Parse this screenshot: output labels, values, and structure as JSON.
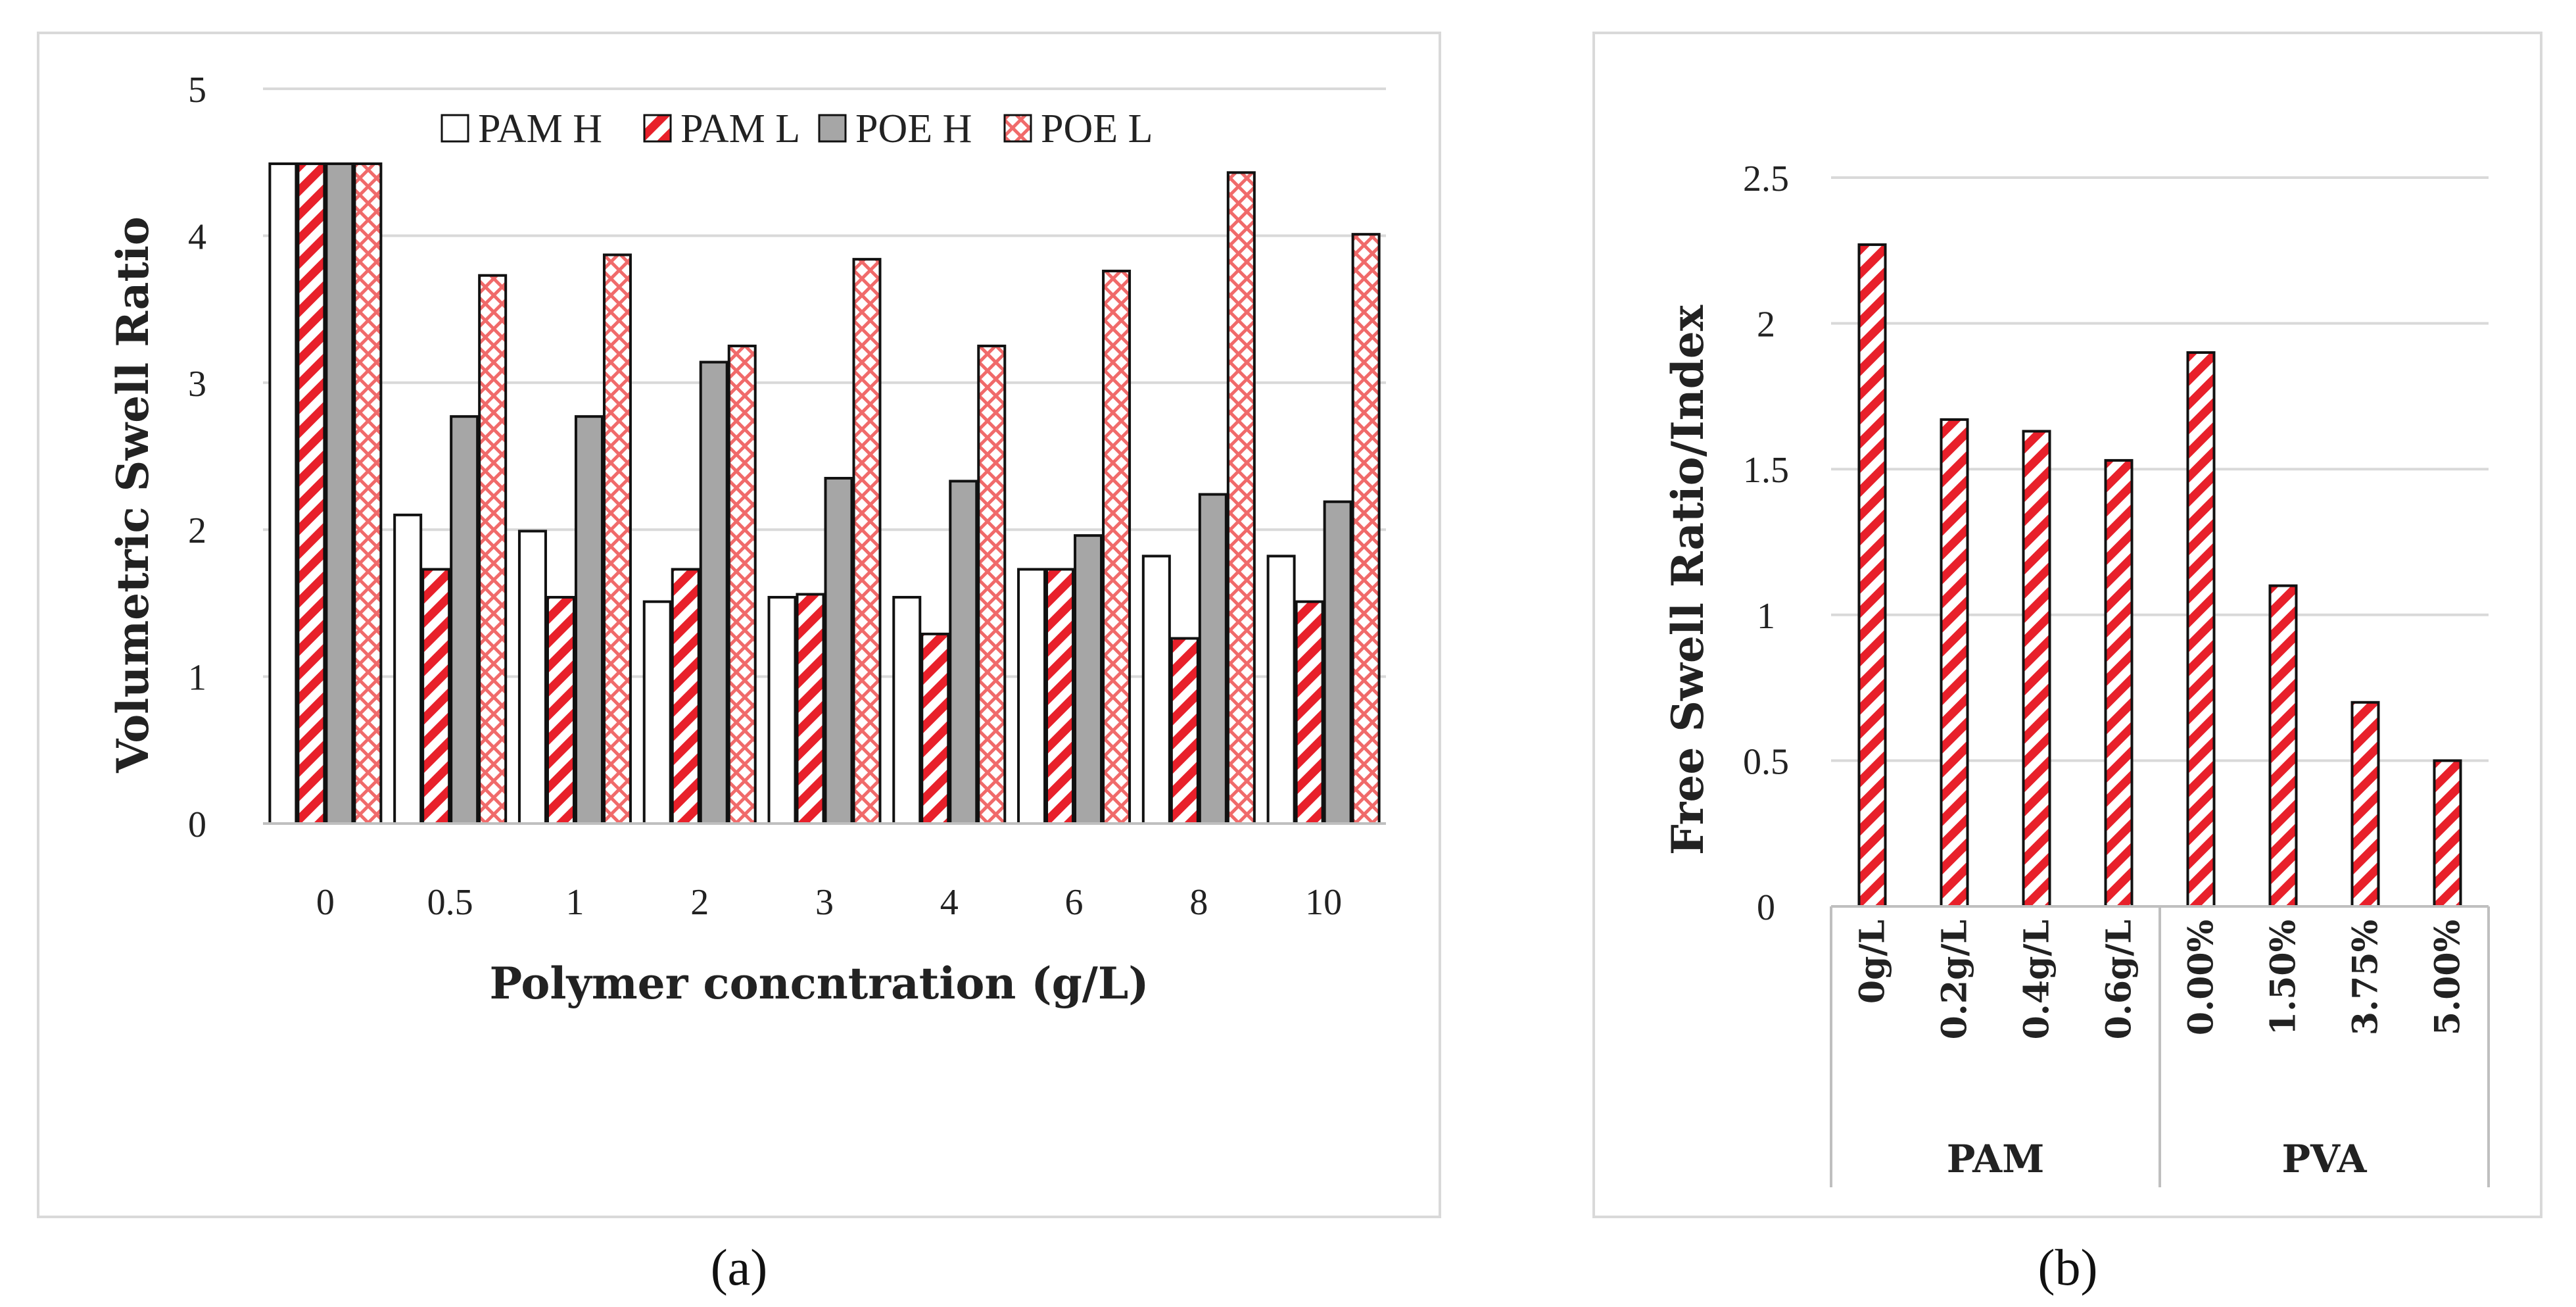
{
  "chart_data": [
    {
      "panel": "a",
      "caption": "(a)",
      "type": "bar",
      "title": "",
      "xlabel": "Polymer concntration (g/L)",
      "ylabel": "Volumetric Swell Ratio",
      "ylim": [
        0,
        5
      ],
      "yticks": [
        0,
        1,
        2,
        3,
        4,
        5
      ],
      "grid": true,
      "legend_position": "top",
      "categories": [
        "0",
        "0.5",
        "1",
        "2",
        "3",
        "4",
        "6",
        "8",
        "10"
      ],
      "series": [
        {
          "name": "PAM H",
          "pattern": "white",
          "values": [
            4.49,
            2.1,
            1.99,
            1.51,
            1.54,
            1.54,
            1.73,
            1.82,
            1.82
          ]
        },
        {
          "name": "PAM L",
          "pattern": "red-diagonal",
          "values": [
            4.49,
            1.73,
            1.54,
            1.73,
            1.56,
            1.29,
            1.73,
            1.26,
            1.51
          ]
        },
        {
          "name": "POE H",
          "pattern": "gray",
          "values": [
            4.49,
            2.77,
            2.77,
            3.14,
            2.35,
            2.33,
            1.96,
            2.24,
            2.19
          ]
        },
        {
          "name": "POE L",
          "pattern": "red-check",
          "values": [
            4.49,
            3.73,
            3.87,
            3.25,
            3.84,
            3.25,
            3.76,
            4.43,
            4.01
          ]
        }
      ]
    },
    {
      "panel": "b",
      "caption": "(b)",
      "type": "bar",
      "title": "",
      "xlabel": "",
      "ylabel": "Free Swell Ratio/Index",
      "ylim": [
        0,
        2.5
      ],
      "yticks": [
        "0",
        "0.5",
        "1",
        "1.5",
        "2",
        "2.5"
      ],
      "grid": true,
      "categories": [
        "0g/L",
        "0.2g/L",
        "0.4g/L",
        "0.6g/L",
        "0.00%",
        "1.50%",
        "3.75%",
        "5.00%"
      ],
      "groups": [
        {
          "name": "PAM",
          "count": 4
        },
        {
          "name": "PVA",
          "count": 4
        }
      ],
      "series": [
        {
          "name": "Free Swell Ratio/Index",
          "pattern": "red-diagonal",
          "values": [
            2.27,
            1.67,
            1.63,
            1.53,
            1.9,
            1.1,
            0.7,
            0.5
          ]
        }
      ]
    }
  ]
}
